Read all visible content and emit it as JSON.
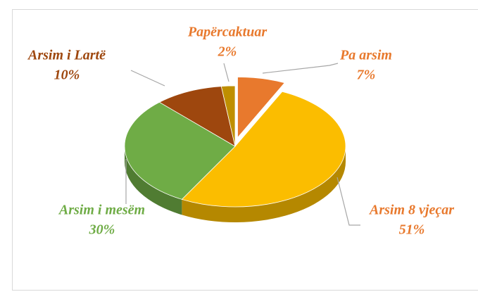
{
  "chart_data": {
    "type": "pie3d",
    "categories": [
      "Pa arsim",
      "Arsim 8 vjeçar",
      "Arsim i mesëm",
      "Arsim i Lartë",
      "Papërcaktuar"
    ],
    "values": [
      7,
      51,
      30,
      10,
      2
    ],
    "value_labels": [
      "7%",
      "51%",
      "30%",
      "10%",
      "2%"
    ],
    "colors": [
      "#e8792d",
      "#fbbd00",
      "#6fac46",
      "#9e470e",
      "#bf8f00"
    ],
    "label_colors": [
      "#e8792d",
      "#e8792d",
      "#6fac46",
      "#9e470e",
      "#e8792d"
    ]
  }
}
